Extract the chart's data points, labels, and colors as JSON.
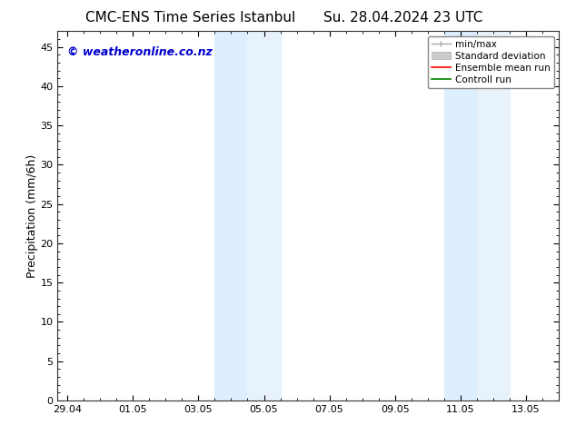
{
  "title_left": "CMC-ENS Time Series Istanbul",
  "title_right": "Su. 28.04.2024 23 UTC",
  "ylabel": "Precipitation (mm/6h)",
  "xlabel_ticks": [
    "29.04",
    "01.05",
    "03.05",
    "05.05",
    "07.05",
    "09.05",
    "11.05",
    "13.05"
  ],
  "xlabel_tick_positions": [
    0,
    2,
    4,
    6,
    8,
    10,
    12,
    14
  ],
  "ylim": [
    0,
    47
  ],
  "yticks": [
    0,
    5,
    10,
    15,
    20,
    25,
    30,
    35,
    40,
    45
  ],
  "xlim": [
    -0.3,
    15.0
  ],
  "background_color": "#ffffff",
  "plot_bg_color": "#ffffff",
  "shaded_regions": [
    {
      "xmin": 4.5,
      "xmax": 5.5,
      "color": "#ddeeff"
    },
    {
      "xmin": 5.5,
      "xmax": 6.5,
      "color": "#e8f2fb"
    },
    {
      "xmin": 11.5,
      "xmax": 12.5,
      "color": "#ddeeff"
    },
    {
      "xmin": 12.5,
      "xmax": 13.5,
      "color": "#e8f2fb"
    }
  ],
  "legend_items": [
    {
      "label": "min/max",
      "color": "#aaaaaa",
      "lw": 1.0,
      "style": "minmax"
    },
    {
      "label": "Standard deviation",
      "color": "#cccccc",
      "lw": 5,
      "style": "band"
    },
    {
      "label": "Ensemble mean run",
      "color": "#ff0000",
      "lw": 1.2,
      "style": "line"
    },
    {
      "label": "Controll run",
      "color": "#008000",
      "lw": 1.2,
      "style": "line"
    }
  ],
  "watermark_text": "© weatheronline.co.nz",
  "watermark_color": "#0000cc",
  "watermark_fontsize": 9,
  "title_fontsize": 11,
  "tick_fontsize": 8,
  "ylabel_fontsize": 9,
  "legend_fontsize": 7.5
}
